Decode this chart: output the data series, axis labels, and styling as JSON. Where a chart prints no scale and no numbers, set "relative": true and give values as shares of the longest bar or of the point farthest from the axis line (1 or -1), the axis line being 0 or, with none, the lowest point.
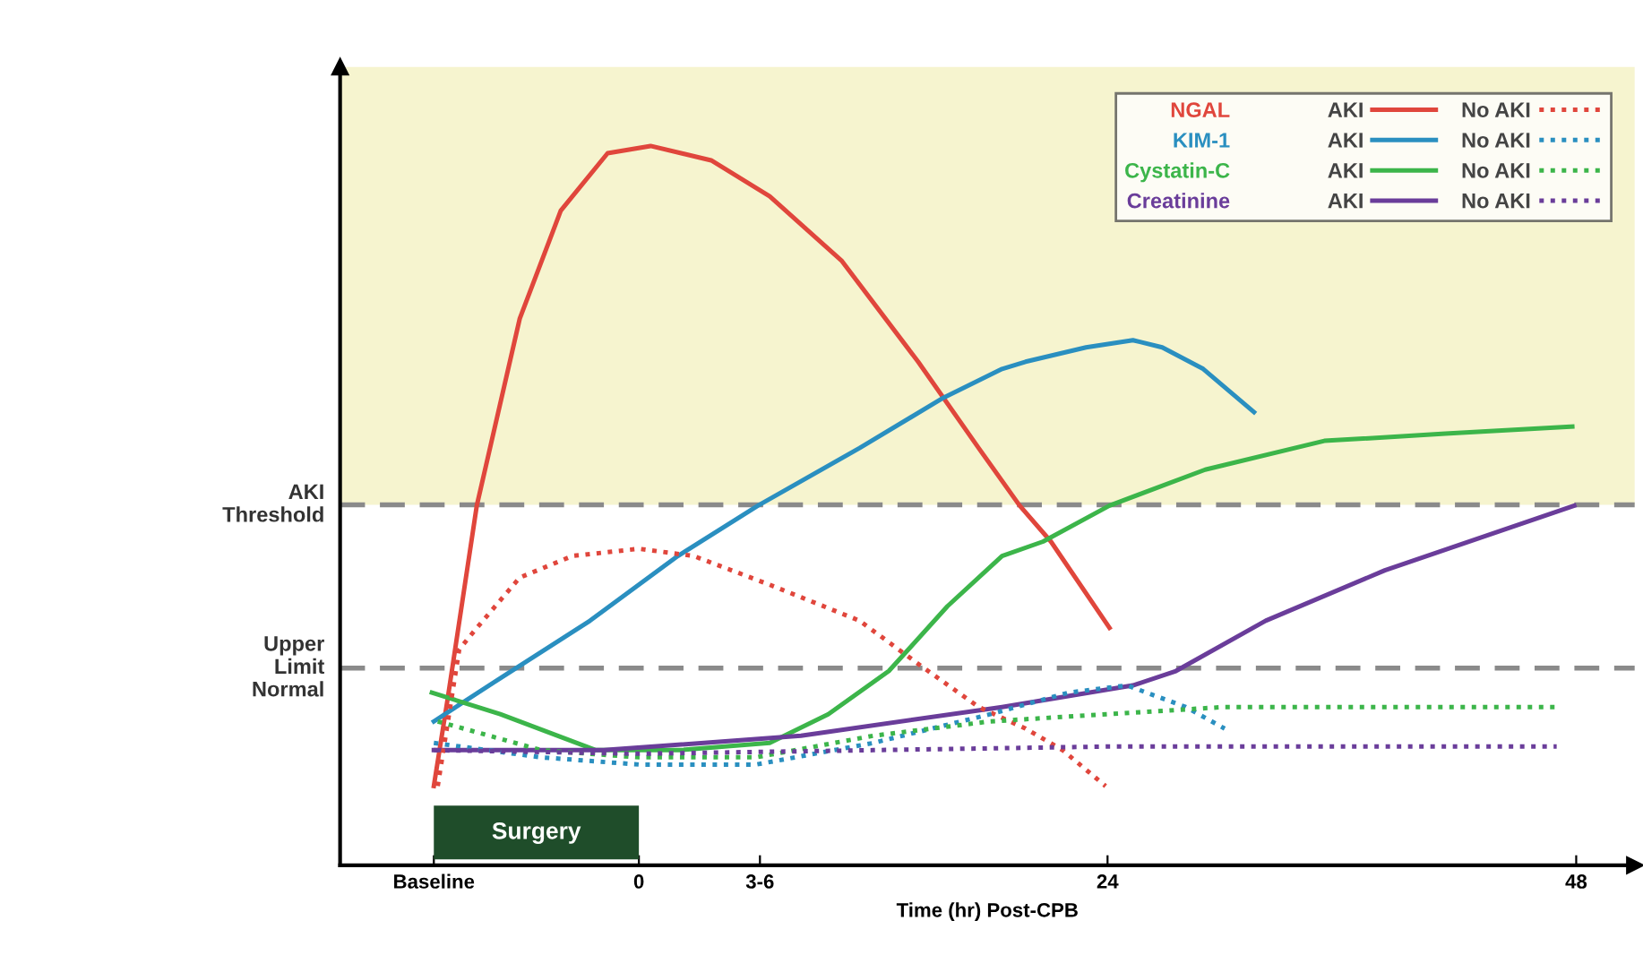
{
  "chart_data": {
    "type": "line",
    "relative": true,
    "xlabel": "Time (hr) Post-CPB",
    "xlim": [
      -15.3,
      51
    ],
    "xticks": [
      {
        "value": -10.5,
        "label": "Baseline"
      },
      0,
      {
        "value": 6.2,
        "label": "3-6"
      },
      24,
      48
    ],
    "tick_labels": "x",
    "grid": false,
    "legend": "top right",
    "marker": "none",
    "ref_lines": [
      {
        "axis": "y",
        "value": 0.501,
        "label": "AKI\nThreshold",
        "color": "#8a8a8a",
        "line_style": "dashed"
      },
      {
        "axis": "y",
        "value": 0.274,
        "label": "Upper\nLimit\nNormal",
        "color": "#8a8a8a",
        "line_style": "dashed"
      }
    ],
    "bands": [
      {
        "axis": "y",
        "from": 0.501,
        "to": 1.11,
        "color": "#f6f4cf"
      }
    ],
    "annotations": [
      "Surgery",
      "NGAL",
      "KIM-1",
      "Cystatin-C",
      "Creatinine"
    ],
    "series": [
      {
        "name": "AKI",
        "color": "#e0463c",
        "line_style": "solid",
        "x": [
          -10.5,
          -9.8,
          -8.3,
          -6.1,
          -4.0,
          -1.6,
          0.6,
          3.7,
          6.7,
          10.4,
          14.3,
          17.4,
          19.5,
          21.1,
          24.1
        ],
        "values": [
          0.11,
          0.23,
          0.5,
          0.76,
          0.91,
          0.99,
          1.0,
          0.98,
          0.93,
          0.84,
          0.7,
          0.58,
          0.5,
          0.45,
          0.33
        ]
      },
      {
        "name": "AKI",
        "color": "#2a8fc0",
        "line_style": "solid",
        "x": [
          -10.5,
          -7.1,
          -2.5,
          2.0,
          6.1,
          11.3,
          15.6,
          18.6,
          19.8,
          22.9,
          25.3,
          26.8,
          28.9,
          31.5
        ],
        "values": [
          0.2,
          0.26,
          0.34,
          0.43,
          0.5,
          0.58,
          0.65,
          0.69,
          0.7,
          0.72,
          0.73,
          0.72,
          0.69,
          0.63
        ]
      },
      {
        "name": "AKI",
        "color": "#3cb54a",
        "line_style": "solid",
        "x": [
          -10.6,
          -7.1,
          -2.2,
          2.1,
          6.7,
          9.7,
          12.8,
          15.8,
          18.6,
          20.7,
          24.1,
          29.0,
          35.1,
          41.3,
          47.8
        ],
        "values": [
          0.24,
          0.21,
          0.16,
          0.16,
          0.17,
          0.21,
          0.27,
          0.36,
          0.43,
          0.45,
          0.5,
          0.55,
          0.59,
          0.6,
          0.61
        ]
      },
      {
        "name": "AKI",
        "color": "#6a3d9a",
        "line_style": "solid",
        "x": [
          -10.5,
          -1.8,
          8.3,
          18.6,
          25.3,
          27.5,
          32.1,
          38.2,
          47.9
        ],
        "values": [
          0.16,
          0.16,
          0.18,
          0.22,
          0.25,
          0.27,
          0.34,
          0.41,
          0.5
        ]
      },
      {
        "name": "No AKI",
        "color": "#e0463c",
        "line_style": "dotted",
        "x": [
          -10.3,
          -9.2,
          -8.3,
          -6.1,
          -3.4,
          0,
          2.8,
          6.7,
          11.3,
          14.3,
          17.4,
          19.8,
          21.7,
          23.9
        ],
        "values": [
          0.11,
          0.3,
          0.33,
          0.4,
          0.43,
          0.44,
          0.43,
          0.39,
          0.34,
          0.28,
          0.22,
          0.19,
          0.16,
          0.11
        ]
      },
      {
        "name": "No AKI",
        "color": "#2a8fc0",
        "line_style": "dotted",
        "x": [
          -10.5,
          -5,
          0,
          6,
          12,
          18,
          22,
          25,
          28,
          30
        ],
        "values": [
          0.17,
          0.15,
          0.14,
          0.14,
          0.17,
          0.21,
          0.24,
          0.25,
          0.22,
          0.19
        ]
      },
      {
        "name": "No AKI",
        "color": "#3cb54a",
        "line_style": "dotted",
        "x": [
          -10.3,
          -5,
          0,
          6,
          12,
          18,
          24,
          30,
          47
        ],
        "values": [
          0.2,
          0.16,
          0.15,
          0.15,
          0.18,
          0.2,
          0.21,
          0.22,
          0.22
        ]
      },
      {
        "name": "No AKI",
        "color": "#6a3d9a",
        "line_style": "dotted",
        "x": [
          -10.5,
          0,
          12,
          24,
          47
        ],
        "values": [
          0.16,
          0.155,
          0.16,
          0.165,
          0.165
        ]
      }
    ]
  }
}
